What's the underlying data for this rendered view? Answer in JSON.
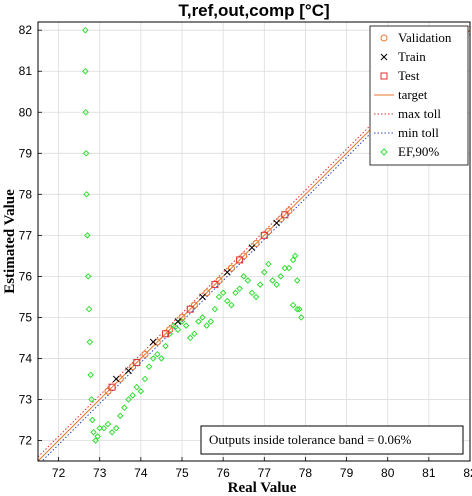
{
  "chart_data": {
    "type": "scatter",
    "title": "T,ref,out,comp [°C]",
    "xlabel": "Real Value",
    "ylabel": "Estimated Value",
    "xlim": [
      71.5,
      82
    ],
    "ylim": [
      71.5,
      82.2
    ],
    "xticks": [
      72,
      73,
      74,
      75,
      76,
      77,
      78,
      79,
      80,
      81,
      82
    ],
    "yticks": [
      72,
      73,
      74,
      75,
      76,
      77,
      78,
      79,
      80,
      81,
      82
    ],
    "grid": true,
    "legend_position": "top-right",
    "tolerance": 0.1,
    "series": [
      {
        "name": "Validation",
        "kind": "marker",
        "marker": "circle",
        "color": "#e8762d",
        "x": [
          73.2,
          73.5,
          73.8,
          74.1,
          74.4,
          74.7,
          75.0,
          75.3,
          75.6,
          75.9,
          76.2,
          76.5,
          76.8,
          77.1,
          77.4,
          77.6
        ],
        "y": [
          73.2,
          73.5,
          73.8,
          74.1,
          74.4,
          74.7,
          75.0,
          75.3,
          75.6,
          75.9,
          76.2,
          76.5,
          76.8,
          77.1,
          77.4,
          77.6
        ]
      },
      {
        "name": "Train",
        "kind": "marker",
        "marker": "x",
        "color": "#000000",
        "x": [
          73.4,
          73.7,
          74.3,
          74.9,
          75.5,
          76.1,
          76.7,
          77.3
        ],
        "y": [
          73.5,
          73.7,
          74.4,
          74.9,
          75.5,
          76.1,
          76.7,
          77.3
        ]
      },
      {
        "name": "Test",
        "kind": "marker",
        "marker": "square",
        "color": "#e03030",
        "x": [
          73.3,
          73.9,
          74.6,
          75.2,
          75.8,
          76.4,
          77.0,
          77.5
        ],
        "y": [
          73.3,
          73.9,
          74.6,
          75.2,
          75.8,
          76.4,
          77.0,
          77.5
        ]
      },
      {
        "name": "target",
        "kind": "line",
        "dash": "solid",
        "color": "#e8762d",
        "x": [
          71.5,
          82
        ],
        "y": [
          71.5,
          82
        ]
      },
      {
        "name": "max toll",
        "kind": "line",
        "dash": "dotted",
        "color": "#e03030",
        "x": [
          71.5,
          82
        ],
        "y": [
          71.6,
          82.1
        ]
      },
      {
        "name": "min toll",
        "kind": "line",
        "dash": "dotted",
        "color": "#3040c0",
        "x": [
          71.5,
          82
        ],
        "y": [
          71.4,
          81.9
        ]
      },
      {
        "name": "EF,90%",
        "kind": "marker",
        "marker": "diamond",
        "color": "#22dd22",
        "x": [
          72.65,
          72.65,
          72.66,
          72.67,
          72.68,
          72.7,
          72.72,
          72.74,
          72.76,
          72.78,
          72.8,
          72.82,
          72.85,
          72.9,
          72.95,
          73.0,
          73.1,
          73.2,
          73.3,
          73.4,
          73.5,
          73.6,
          73.7,
          73.8,
          73.9,
          74.0,
          74.1,
          74.2,
          74.3,
          74.4,
          74.5,
          74.6,
          74.7,
          74.8,
          74.9,
          75.0,
          75.1,
          75.2,
          75.3,
          75.4,
          75.5,
          75.6,
          75.7,
          75.8,
          75.9,
          76.0,
          76.1,
          76.2,
          76.3,
          76.4,
          76.5,
          76.6,
          76.7,
          76.8,
          76.9,
          77.0,
          77.1,
          77.2,
          77.3,
          77.4,
          77.5,
          77.6,
          77.7,
          77.75,
          77.8,
          77.85,
          77.9,
          77.8,
          77.7
        ],
        "y": [
          82.0,
          81.0,
          80.0,
          79.0,
          78.0,
          77.0,
          76.0,
          75.2,
          74.4,
          73.6,
          73.0,
          72.5,
          72.2,
          72.0,
          72.1,
          72.3,
          72.3,
          72.4,
          72.2,
          72.3,
          72.6,
          72.8,
          73.0,
          73.1,
          73.3,
          73.2,
          73.5,
          73.8,
          74.0,
          74.1,
          74.0,
          74.3,
          74.6,
          74.8,
          74.7,
          74.9,
          74.8,
          74.5,
          74.6,
          74.9,
          75.0,
          74.8,
          74.9,
          75.2,
          75.5,
          75.6,
          75.4,
          75.3,
          75.6,
          75.7,
          76.0,
          75.9,
          75.6,
          75.5,
          75.8,
          76.1,
          76.3,
          75.9,
          75.8,
          76.0,
          76.2,
          76.2,
          76.4,
          76.5,
          75.9,
          75.2,
          75.0,
          75.2,
          75.3
        ]
      }
    ],
    "annotation": "Outputs inside tolerance band = 0.06%"
  }
}
